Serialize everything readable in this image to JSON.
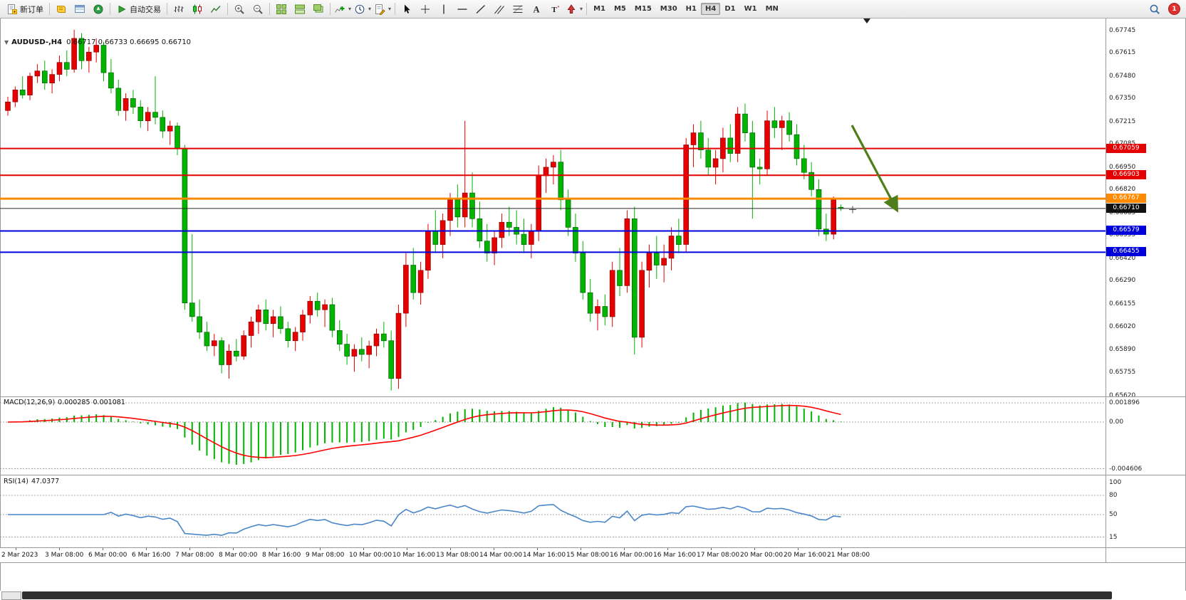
{
  "toolbar": {
    "notification": "1",
    "groups": [
      {
        "items": [
          {
            "name": "new-order-button",
            "icon": "new-order",
            "label": "新订单"
          }
        ]
      },
      {
        "items": [
          {
            "name": "market-watch-button",
            "icon": "market-watch"
          },
          {
            "name": "data-window-button",
            "icon": "data-window"
          },
          {
            "name": "navigator-button",
            "icon": "navigator"
          }
        ]
      },
      {
        "items": [
          {
            "name": "auto-trading-button",
            "icon": "auto-trading",
            "label": "自动交易"
          }
        ]
      },
      {
        "items": [
          {
            "name": "bar-chart-button",
            "icon": "bars"
          },
          {
            "name": "candlestick-chart-button",
            "icon": "candles"
          },
          {
            "name": "line-chart-button",
            "icon": "line-chart"
          }
        ]
      },
      {
        "items": [
          {
            "name": "zoom-in-button",
            "icon": "zoom-in"
          },
          {
            "name": "zoom-out-button",
            "icon": "zoom-out"
          }
        ]
      },
      {
        "items": [
          {
            "name": "tile-windows-button",
            "icon": "tile"
          },
          {
            "name": "arrange-windows-button",
            "icon": "arrange-h"
          },
          {
            "name": "cascade-windows-button",
            "icon": "cascade"
          }
        ]
      },
      {
        "items": [
          {
            "name": "indicators-button",
            "icon": "indicators",
            "caret": true
          },
          {
            "name": "periods-button",
            "icon": "clock",
            "caret": true
          },
          {
            "name": "templates-button",
            "icon": "template",
            "caret": true
          }
        ]
      },
      {
        "items": [
          {
            "name": "cursor-button",
            "icon": "cursor"
          },
          {
            "name": "crosshair-button",
            "icon": "crosshair"
          },
          {
            "name": "vertical-line-button",
            "icon": "vline"
          },
          {
            "name": "horizontal-line-button",
            "icon": "hline"
          },
          {
            "name": "trendline-button",
            "icon": "trendline"
          },
          {
            "name": "channel-button",
            "icon": "channel"
          },
          {
            "name": "fibonacci-button",
            "icon": "fibo"
          },
          {
            "name": "text-button",
            "icon": "text-a"
          },
          {
            "name": "text-label-button",
            "icon": "label-t"
          },
          {
            "name": "arrows-button",
            "icon": "shapes",
            "caret": true
          }
        ]
      },
      {
        "items": [
          {
            "name": "timeframe-m1-button",
            "label": "M1",
            "tf": true
          },
          {
            "name": "timeframe-m5-button",
            "label": "M5",
            "tf": true
          },
          {
            "name": "timeframe-m15-button",
            "label": "M15",
            "tf": true
          },
          {
            "name": "timeframe-m30-button",
            "label": "M30",
            "tf": true
          },
          {
            "name": "timeframe-h1-button",
            "label": "H1",
            "tf": true
          },
          {
            "name": "timeframe-h4-button",
            "label": "H4",
            "tf": true,
            "active": true
          },
          {
            "name": "timeframe-d1-button",
            "label": "D1",
            "tf": true
          },
          {
            "name": "timeframe-w1-button",
            "label": "W1",
            "tf": true
          },
          {
            "name": "timeframe-mn-button",
            "label": "MN",
            "tf": true
          }
        ]
      }
    ]
  },
  "chart_data": {
    "type": "candlestick",
    "title": "AUDUSD-,H4",
    "symbol": "AUDUSD",
    "timeframe": "H4",
    "ohlc_line": "0.66717 0.66733 0.66695 0.66710",
    "up_color": "#e60000",
    "down_color": "#00b400",
    "ylim": [
      0.6556,
      0.6781
    ],
    "y_ticks": [
      "0.67745",
      "0.67615",
      "0.67480",
      "0.67350",
      "0.67215",
      "0.67085",
      "0.66950",
      "0.66820",
      "0.66685",
      "0.66555",
      "0.66420",
      "0.66290",
      "0.66155",
      "0.66020",
      "0.65890",
      "0.65755",
      "0.65620"
    ],
    "hlines": [
      {
        "price": 0.67059,
        "label": "0.67059",
        "color": "#e40000",
        "label_bg": "#e40000",
        "width": 2
      },
      {
        "price": 0.66903,
        "label": "0.66903",
        "color": "#e40000",
        "label_bg": "#e40000",
        "width": 2
      },
      {
        "price": 0.66767,
        "label": "0.66767",
        "color": "#ff8a00",
        "label_bg": "#ff8a00",
        "width": 3
      },
      {
        "price": 0.6671,
        "label": "0.66710",
        "color": "#2a2a2a",
        "label_bg": "#111111",
        "width": 1,
        "role": "bid"
      },
      {
        "price": 0.66579,
        "label": "0.66579",
        "color": "#0000dc",
        "label_bg": "#0000dc",
        "width": 2
      },
      {
        "price": 0.66455,
        "label": "0.66455",
        "color": "#0000dc",
        "label_bg": "#0000dc",
        "width": 2
      }
    ],
    "time_labels": [
      "2 Mar 2023",
      "3 Mar 08:00",
      "6 Mar 00:00",
      "6 Mar 16:00",
      "7 Mar 08:00",
      "8 Mar 00:00",
      "8 Mar 16:00",
      "9 Mar 08:00",
      "10 Mar 00:00",
      "10 Mar 16:00",
      "13 Mar 08:00",
      "14 Mar 00:00",
      "14 Mar 16:00",
      "15 Mar 08:00",
      "16 Mar 00:00",
      "16 Mar 16:00",
      "17 Mar 08:00",
      "20 Mar 00:00",
      "20 Mar 16:00",
      "21 Mar 08:00"
    ],
    "annotations": [
      {
        "type": "arrow",
        "name": "sell-direction-arrow",
        "direction": "down-right",
        "color": "#4e7e1a"
      }
    ],
    "candles": [
      [
        0.6728,
        0.6736,
        0.6725,
        0.6733
      ],
      [
        0.6733,
        0.6742,
        0.673,
        0.674
      ],
      [
        0.674,
        0.6748,
        0.6735,
        0.6737
      ],
      [
        0.6737,
        0.675,
        0.6734,
        0.6748
      ],
      [
        0.6748,
        0.6755,
        0.6744,
        0.6751
      ],
      [
        0.6751,
        0.6757,
        0.674,
        0.6744
      ],
      [
        0.6744,
        0.6752,
        0.6738,
        0.6749
      ],
      [
        0.6749,
        0.676,
        0.6745,
        0.6756
      ],
      [
        0.6756,
        0.6763,
        0.6748,
        0.6752
      ],
      [
        0.6752,
        0.6775,
        0.675,
        0.677
      ],
      [
        0.677,
        0.6773,
        0.6752,
        0.6757
      ],
      [
        0.6757,
        0.6765,
        0.675,
        0.6762
      ],
      [
        0.6762,
        0.677,
        0.6756,
        0.6766
      ],
      [
        0.6766,
        0.6768,
        0.6745,
        0.675
      ],
      [
        0.675,
        0.6758,
        0.6738,
        0.6741
      ],
      [
        0.6741,
        0.6746,
        0.6725,
        0.6728
      ],
      [
        0.6728,
        0.6738,
        0.6722,
        0.6735
      ],
      [
        0.6735,
        0.674,
        0.6726,
        0.673
      ],
      [
        0.673,
        0.6734,
        0.6718,
        0.6722
      ],
      [
        0.6722,
        0.673,
        0.6716,
        0.6727
      ],
      [
        0.6727,
        0.6748,
        0.672,
        0.6724
      ],
      [
        0.6724,
        0.6728,
        0.6712,
        0.6716
      ],
      [
        0.6716,
        0.6722,
        0.6708,
        0.6719
      ],
      [
        0.6719,
        0.6721,
        0.6702,
        0.6706
      ],
      [
        0.6706,
        0.6708,
        0.6612,
        0.6616
      ],
      [
        0.6616,
        0.6656,
        0.6605,
        0.6608
      ],
      [
        0.6608,
        0.6618,
        0.6595,
        0.6599
      ],
      [
        0.6599,
        0.6605,
        0.6588,
        0.6591
      ],
      [
        0.6591,
        0.6598,
        0.6585,
        0.6594
      ],
      [
        0.6594,
        0.6596,
        0.6575,
        0.658
      ],
      [
        0.658,
        0.6592,
        0.6572,
        0.6588
      ],
      [
        0.6588,
        0.6595,
        0.6582,
        0.6585
      ],
      [
        0.6585,
        0.66,
        0.6583,
        0.6597
      ],
      [
        0.6597,
        0.6608,
        0.659,
        0.6605
      ],
      [
        0.6605,
        0.6615,
        0.6598,
        0.6612
      ],
      [
        0.6612,
        0.6618,
        0.66,
        0.6604
      ],
      [
        0.6604,
        0.6612,
        0.6596,
        0.6608
      ],
      [
        0.6608,
        0.6614,
        0.6598,
        0.6601
      ],
      [
        0.6601,
        0.6605,
        0.659,
        0.6594
      ],
      [
        0.6594,
        0.6602,
        0.6588,
        0.6599
      ],
      [
        0.6599,
        0.6612,
        0.6594,
        0.6609
      ],
      [
        0.6609,
        0.662,
        0.6604,
        0.6617
      ],
      [
        0.6617,
        0.6622,
        0.6608,
        0.6612
      ],
      [
        0.6612,
        0.6618,
        0.6602,
        0.6615
      ],
      [
        0.6615,
        0.6619,
        0.6596,
        0.66
      ],
      [
        0.66,
        0.6606,
        0.6588,
        0.6592
      ],
      [
        0.6592,
        0.6598,
        0.658,
        0.6585
      ],
      [
        0.6585,
        0.6592,
        0.6576,
        0.6589
      ],
      [
        0.6589,
        0.6596,
        0.6582,
        0.6586
      ],
      [
        0.6586,
        0.6594,
        0.6578,
        0.6591
      ],
      [
        0.6591,
        0.6601,
        0.6585,
        0.6598
      ],
      [
        0.6598,
        0.6605,
        0.659,
        0.6594
      ],
      [
        0.6594,
        0.66,
        0.6565,
        0.6572
      ],
      [
        0.6572,
        0.6615,
        0.6566,
        0.661
      ],
      [
        0.661,
        0.6645,
        0.6602,
        0.6638
      ],
      [
        0.6638,
        0.6648,
        0.6618,
        0.6622
      ],
      [
        0.6622,
        0.664,
        0.6615,
        0.6635
      ],
      [
        0.6635,
        0.6662,
        0.663,
        0.6658
      ],
      [
        0.6658,
        0.667,
        0.6645,
        0.665
      ],
      [
        0.665,
        0.6668,
        0.6642,
        0.6664
      ],
      [
        0.6664,
        0.668,
        0.6655,
        0.6676
      ],
      [
        0.6676,
        0.6685,
        0.666,
        0.6666
      ],
      [
        0.6666,
        0.6722,
        0.666,
        0.668
      ],
      [
        0.668,
        0.6692,
        0.666,
        0.6665
      ],
      [
        0.6665,
        0.6675,
        0.6648,
        0.6652
      ],
      [
        0.6652,
        0.6662,
        0.664,
        0.6645
      ],
      [
        0.6645,
        0.6658,
        0.6638,
        0.6654
      ],
      [
        0.6654,
        0.6668,
        0.6648,
        0.6663
      ],
      [
        0.6663,
        0.6672,
        0.6655,
        0.666
      ],
      [
        0.666,
        0.667,
        0.665,
        0.6656
      ],
      [
        0.6656,
        0.6665,
        0.6645,
        0.665
      ],
      [
        0.665,
        0.6662,
        0.6642,
        0.6658
      ],
      [
        0.6658,
        0.6696,
        0.6652,
        0.669
      ],
      [
        0.669,
        0.67,
        0.668,
        0.6695
      ],
      [
        0.6695,
        0.6702,
        0.6685,
        0.6698
      ],
      [
        0.6698,
        0.6705,
        0.667,
        0.6676
      ],
      [
        0.6676,
        0.6682,
        0.6655,
        0.666
      ],
      [
        0.666,
        0.6668,
        0.664,
        0.6645
      ],
      [
        0.6645,
        0.6652,
        0.6618,
        0.6622
      ],
      [
        0.6622,
        0.663,
        0.6605,
        0.661
      ],
      [
        0.661,
        0.6618,
        0.66,
        0.6614
      ],
      [
        0.6614,
        0.6621,
        0.6603,
        0.6608
      ],
      [
        0.6608,
        0.664,
        0.6602,
        0.6635
      ],
      [
        0.6635,
        0.6648,
        0.662,
        0.6626
      ],
      [
        0.6626,
        0.667,
        0.6622,
        0.6665
      ],
      [
        0.6665,
        0.6672,
        0.6586,
        0.6596
      ],
      [
        0.6596,
        0.664,
        0.659,
        0.6635
      ],
      [
        0.6635,
        0.665,
        0.6625,
        0.6645
      ],
      [
        0.6645,
        0.6655,
        0.663,
        0.6638
      ],
      [
        0.6638,
        0.665,
        0.6628,
        0.6642
      ],
      [
        0.6642,
        0.666,
        0.6635,
        0.6655
      ],
      [
        0.6655,
        0.6665,
        0.6645,
        0.665
      ],
      [
        0.665,
        0.6712,
        0.6646,
        0.6708
      ],
      [
        0.6708,
        0.672,
        0.6695,
        0.6715
      ],
      [
        0.6715,
        0.6722,
        0.67,
        0.6705
      ],
      [
        0.6705,
        0.6712,
        0.669,
        0.6695
      ],
      [
        0.6695,
        0.6705,
        0.6685,
        0.67
      ],
      [
        0.67,
        0.6718,
        0.6692,
        0.6712
      ],
      [
        0.6712,
        0.672,
        0.6698,
        0.6703
      ],
      [
        0.6703,
        0.673,
        0.6698,
        0.6726
      ],
      [
        0.6726,
        0.6732,
        0.671,
        0.6715
      ],
      [
        0.6715,
        0.6722,
        0.6665,
        0.6695
      ],
      [
        0.6695,
        0.67,
        0.6685,
        0.6694
      ],
      [
        0.6694,
        0.6728,
        0.669,
        0.6722
      ],
      [
        0.6722,
        0.673,
        0.6712,
        0.6718
      ],
      [
        0.6718,
        0.6725,
        0.6705,
        0.6722
      ],
      [
        0.6722,
        0.6727,
        0.671,
        0.6714
      ],
      [
        0.6714,
        0.672,
        0.6696,
        0.67
      ],
      [
        0.67,
        0.6708,
        0.6688,
        0.6692
      ],
      [
        0.6692,
        0.6698,
        0.6678,
        0.6682
      ],
      [
        0.6682,
        0.6688,
        0.6655,
        0.6659
      ],
      [
        0.6659,
        0.6668,
        0.6652,
        0.6656
      ],
      [
        0.6656,
        0.6678,
        0.6653,
        0.6676
      ],
      [
        0.66717,
        0.66733,
        0.66695,
        0.6671
      ]
    ],
    "indicators": {
      "macd": {
        "label": "MACD(12,26,9)",
        "value_main": "0.000285",
        "value_signal": "0.001081",
        "scale_labels": [
          "0.001896",
          "0.00",
          "-0.004606"
        ],
        "scale_values": [
          0.001896,
          0,
          -0.004606
        ],
        "ylim": [
          -0.004606,
          0.001896
        ],
        "histogram_color": "#00b400",
        "signal_color": "#ff0000"
      },
      "rsi": {
        "label": "RSI(14)",
        "value": "47.0377",
        "scale_labels": [
          "100",
          "80",
          "50",
          "15"
        ],
        "scale_values": [
          100,
          80,
          50,
          15
        ],
        "levels": [
          80,
          50,
          15
        ],
        "line_color": "#4a86c8"
      }
    }
  }
}
